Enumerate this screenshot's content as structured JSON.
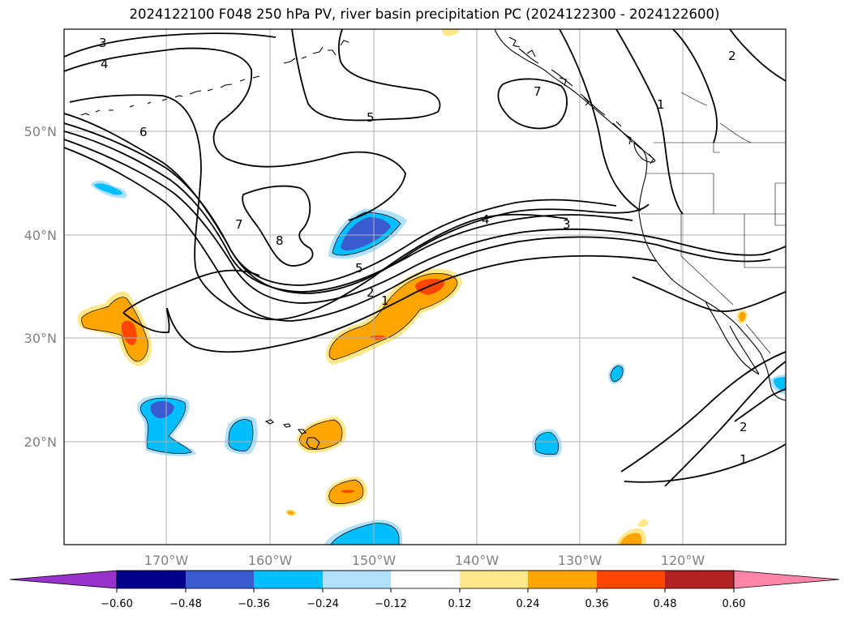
{
  "title": "2024122100 F048 250 hPa PV, river basin precipitation PC (2024122300 - 2024122600)",
  "map": {
    "lat_labels": [
      "50°N",
      "40°N",
      "30°N",
      "20°N"
    ],
    "lon_labels": [
      "170°W",
      "160°W",
      "150°W",
      "140°W",
      "130°W",
      "120°W"
    ],
    "pv_contour_labels": [
      "3",
      "4",
      "6",
      "7",
      "8",
      "5",
      "2",
      "1",
      "5",
      "4",
      "3",
      "7",
      "2",
      "1",
      "2",
      "1"
    ]
  },
  "colorbar": {
    "colors": [
      "#9932cc",
      "#00008b",
      "#3a5bd0",
      "#00bfff",
      "#b0e0fa",
      "#ffffff",
      "#ffe88a",
      "#ffa500",
      "#ff4500",
      "#b22222",
      "#ff85a8"
    ],
    "tick_labels": [
      "−0.60",
      "−0.48",
      "−0.36",
      "−0.24",
      "−0.12",
      "0.12",
      "0.24",
      "0.36",
      "0.48",
      "0.60"
    ]
  }
}
